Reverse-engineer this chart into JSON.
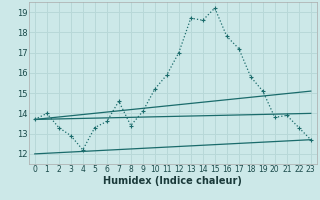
{
  "xlabel": "Humidex (Indice chaleur)",
  "bg_color": "#cce8e8",
  "grid_color": "#b8d8d8",
  "line_color": "#1a6b6b",
  "xlim": [
    -0.5,
    23.5
  ],
  "ylim": [
    11.5,
    19.5
  ],
  "xticks": [
    0,
    1,
    2,
    3,
    4,
    5,
    6,
    7,
    8,
    9,
    10,
    11,
    12,
    13,
    14,
    15,
    16,
    17,
    18,
    19,
    20,
    21,
    22,
    23
  ],
  "yticks": [
    12,
    13,
    14,
    15,
    16,
    17,
    18,
    19
  ],
  "series1_x": [
    0,
    1,
    2,
    3,
    4,
    5,
    6,
    7,
    8,
    9,
    10,
    11,
    12,
    13,
    14,
    15,
    16,
    17,
    18,
    19,
    20,
    21,
    22,
    23
  ],
  "series1_y": [
    13.7,
    14.0,
    13.3,
    12.9,
    12.2,
    13.3,
    13.6,
    14.6,
    13.4,
    14.1,
    15.2,
    15.9,
    17.0,
    18.7,
    18.6,
    19.2,
    17.8,
    17.2,
    15.8,
    15.1,
    13.8,
    13.9,
    13.3,
    12.7
  ],
  "series2_x": [
    0,
    23
  ],
  "series2_y": [
    13.7,
    15.1
  ],
  "series3_x": [
    0,
    23
  ],
  "series3_y": [
    13.7,
    14.0
  ],
  "series4_x": [
    0,
    23
  ],
  "series4_y": [
    12.0,
    12.7
  ]
}
